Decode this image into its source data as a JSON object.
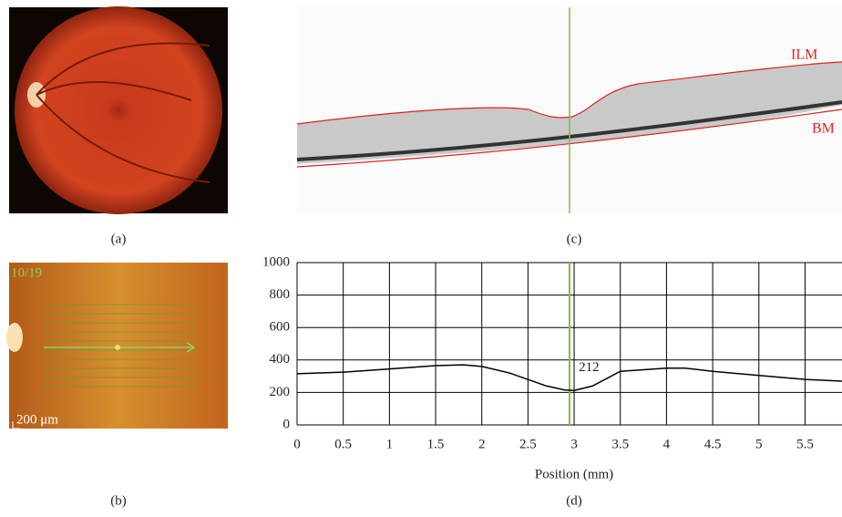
{
  "panel_labels": {
    "a": "(a)",
    "b": "(b)",
    "c": "(c)",
    "d": "(d)"
  },
  "fundus_scan": {
    "scan_index": "10/19",
    "scale_bar": "200 μm"
  },
  "oct": {
    "upper_boundary": "ILM",
    "lower_boundary": "BM"
  },
  "chart_data": {
    "type": "line",
    "x_label": "Position (mm)",
    "x": [
      0,
      0.5,
      1,
      1.5,
      1.8,
      2,
      2.3,
      2.5,
      2.7,
      2.9,
      3,
      3.2,
      3.5,
      4,
      4.2,
      4.5,
      5,
      5.5,
      5.9
    ],
    "series": [
      {
        "color": "#000000",
        "values": [
          315,
          325,
          345,
          365,
          370,
          360,
          320,
          280,
          240,
          215,
          212,
          240,
          330,
          350,
          350,
          330,
          305,
          280,
          270
        ]
      }
    ],
    "xlim": [
      0,
      5.9
    ],
    "ylim": [
      0,
      1000
    ],
    "xticks": [
      0,
      0.5,
      1,
      1.5,
      2,
      2.5,
      3,
      3.5,
      4,
      4.5,
      5,
      5.5
    ],
    "yticks": [
      0,
      200,
      400,
      600,
      800,
      1000
    ],
    "grid": true,
    "marker_x": 2.95,
    "marker_color": "#7ac142",
    "annotation": {
      "x": 3.05,
      "y": 350,
      "text": "212"
    }
  }
}
